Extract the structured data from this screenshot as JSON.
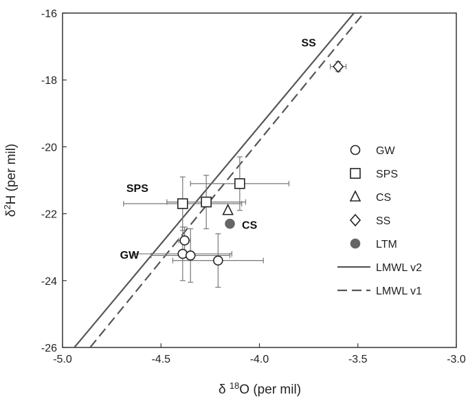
{
  "chart_data": {
    "type": "scatter",
    "xlabel": "δ 18O (per mil)",
    "xlabel_parts": {
      "prefix": "δ ",
      "superscript": "18",
      "suffix": "O (per mil)"
    },
    "ylabel": "δ2H (per mil)",
    "ylabel_parts": {
      "prefix": "δ",
      "superscript": "2",
      "suffix": "H (per mil)"
    },
    "xlim": [
      -5.0,
      -3.0
    ],
    "ylim": [
      -26,
      -16
    ],
    "xticks": [
      "-5.0",
      "-4.5",
      "-4.0",
      "-3.5",
      "-3.0"
    ],
    "yticks": [
      "-16",
      "-18",
      "-20",
      "-22",
      "-24",
      "-26"
    ],
    "grid": false,
    "legend_position": "right",
    "series": [
      {
        "name": "GW",
        "marker": "circle",
        "fill": "#ffffff",
        "points": [
          {
            "x": -4.38,
            "y": -22.8,
            "xerr": 0.03,
            "yerr": 0.4
          },
          {
            "x": -4.39,
            "y": -23.2,
            "xerr": 0.25,
            "yerr": 0.8
          },
          {
            "x": -4.35,
            "y": -23.25,
            "xerr": 0.2,
            "yerr": 0.8
          },
          {
            "x": -4.21,
            "y": -23.4,
            "xerr": 0.23,
            "yerr": 0.8
          }
        ]
      },
      {
        "name": "SPS",
        "marker": "square",
        "fill": "#ffffff",
        "points": [
          {
            "x": -4.39,
            "y": -21.7,
            "xerr": 0.3,
            "yerr": 0.8
          },
          {
            "x": -4.27,
            "y": -21.65,
            "xerr": 0.2,
            "yerr": 0.8
          },
          {
            "x": -4.1,
            "y": -21.1,
            "xerr": 0.25,
            "yerr": 0.8
          }
        ]
      },
      {
        "name": "CS",
        "marker": "triangle",
        "fill": "#ffffff",
        "points": [
          {
            "x": -4.16,
            "y": -21.9,
            "xerr": 0.0,
            "yerr": 0.0
          }
        ]
      },
      {
        "name": "SS",
        "marker": "diamond",
        "fill": "#ffffff",
        "points": [
          {
            "x": -3.6,
            "y": -17.6,
            "xerr": 0.04,
            "yerr": 0.15
          }
        ]
      },
      {
        "name": "LTM",
        "marker": "filled-circle",
        "fill": "#666666",
        "points": [
          {
            "x": -4.15,
            "y": -22.3,
            "xerr": 0.0,
            "yerr": 0.0
          }
        ]
      }
    ],
    "lines": [
      {
        "name": "LMWL v2",
        "style": "solid",
        "x1": -4.94,
        "y1": -26,
        "x2": -3.52,
        "y2": -16
      },
      {
        "name": "LMWL v1",
        "style": "dashed",
        "x1": -4.86,
        "y1": -26,
        "x2": -3.47,
        "y2": -16
      }
    ],
    "annotations": [
      {
        "text": "SS",
        "x": -3.75,
        "y": -17.0
      },
      {
        "text": "SPS",
        "x": -4.62,
        "y": -21.35
      },
      {
        "text": "CS",
        "x": -4.05,
        "y": -22.45
      },
      {
        "text": "GW",
        "x": -4.66,
        "y": -23.35
      }
    ],
    "colors": {
      "marker_stroke": "#222222",
      "line": "#555555",
      "errorbar": "#777777"
    }
  }
}
